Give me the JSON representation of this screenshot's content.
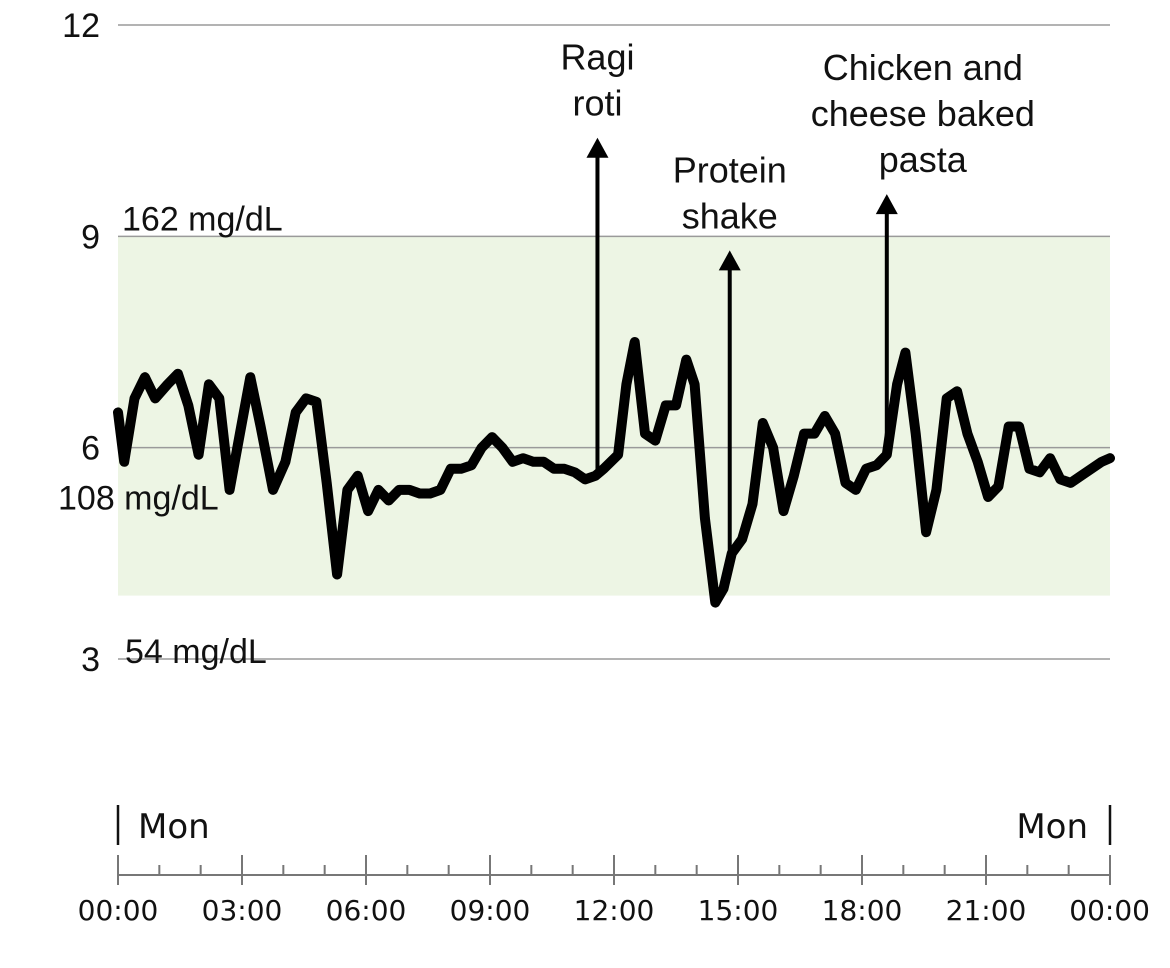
{
  "chart_data": {
    "type": "line",
    "title": "",
    "xlabel": "",
    "ylabel": "",
    "ylim": [
      0,
      12
    ],
    "xlim_hours": [
      0,
      24
    ],
    "yticks": [
      "12",
      "9",
      "6",
      "3"
    ],
    "xticks": [
      "00:00",
      "03:00",
      "06:00",
      "09:00",
      "12:00",
      "15:00",
      "18:00",
      "21:00",
      "00:00"
    ],
    "day_labels": {
      "start": "Mon",
      "end": "Mon"
    },
    "target_range": {
      "low": 3.9,
      "high": 9.0
    },
    "level_labels": [
      {
        "value": 9,
        "text": "162 mg/dL"
      },
      {
        "value": 6,
        "text": "108 mg/dL"
      },
      {
        "value": 3,
        "text": "54 mg/dL"
      }
    ],
    "annotations": [
      {
        "hour": 11.6,
        "value": 10.4,
        "lines": [
          "Ragi",
          "roti"
        ]
      },
      {
        "hour": 14.8,
        "value": 8.8,
        "lines": [
          "Protein",
          "shake"
        ]
      },
      {
        "hour": 18.6,
        "value": 9.6,
        "lines": [
          "Chicken and",
          "cheese baked",
          "pasta"
        ]
      }
    ],
    "series": [
      {
        "x": [
          0.0,
          0.15,
          0.4,
          0.65,
          0.9,
          1.2,
          1.45,
          1.7,
          1.95,
          2.2,
          2.45,
          2.7,
          2.95,
          3.2,
          3.45,
          3.75,
          4.05,
          4.3,
          4.55,
          4.8,
          5.05,
          5.3,
          5.55,
          5.8,
          6.05,
          6.3,
          6.55,
          6.8,
          7.05,
          7.3,
          7.55,
          7.8,
          8.05,
          8.3,
          8.55,
          8.8,
          9.05,
          9.3,
          9.55,
          9.8,
          10.05,
          10.3,
          10.55,
          10.8,
          11.05,
          11.3,
          11.55,
          11.75,
          12.1,
          12.3,
          12.5,
          12.75,
          13.0,
          13.25,
          13.5,
          13.75,
          13.95,
          14.2,
          14.45,
          14.65,
          14.85,
          15.1,
          15.35,
          15.6,
          15.85,
          16.1,
          16.35,
          16.6,
          16.85,
          17.1,
          17.35,
          17.6,
          17.85,
          18.1,
          18.35,
          18.6,
          18.85,
          19.05,
          19.3,
          19.55,
          19.8,
          20.05,
          20.3,
          20.55,
          20.8,
          21.05,
          21.3,
          21.55,
          21.8,
          22.05,
          22.3,
          22.55,
          22.8,
          23.05,
          23.3,
          23.55,
          23.8,
          24.0
        ],
        "y": [
          6.5,
          5.8,
          6.7,
          7.0,
          6.7,
          6.9,
          7.05,
          6.6,
          5.9,
          6.9,
          6.7,
          5.4,
          6.2,
          7.0,
          6.3,
          5.4,
          5.8,
          6.5,
          6.7,
          6.65,
          5.5,
          4.2,
          5.4,
          5.6,
          5.1,
          5.4,
          5.25,
          5.4,
          5.4,
          5.35,
          5.35,
          5.4,
          5.7,
          5.7,
          5.75,
          6.0,
          6.15,
          6.0,
          5.8,
          5.85,
          5.8,
          5.8,
          5.7,
          5.7,
          5.65,
          5.55,
          5.6,
          5.7,
          5.9,
          6.9,
          7.5,
          6.2,
          6.1,
          6.6,
          6.6,
          7.25,
          6.9,
          5.0,
          3.8,
          4.0,
          4.5,
          4.7,
          5.2,
          6.35,
          6.0,
          5.1,
          5.6,
          6.2,
          6.2,
          6.45,
          6.2,
          5.5,
          5.4,
          5.7,
          5.75,
          5.9,
          6.9,
          7.35,
          6.2,
          4.8,
          5.4,
          6.7,
          6.8,
          6.2,
          5.8,
          5.3,
          5.45,
          6.3,
          6.3,
          5.7,
          5.65,
          5.85,
          5.55,
          5.5,
          5.6,
          5.7,
          5.8,
          5.85
        ]
      }
    ]
  },
  "colors": {
    "line": "#000000",
    "target_band": "#edf5e4",
    "grid": "#9a9a9a",
    "axis": "#777777"
  }
}
